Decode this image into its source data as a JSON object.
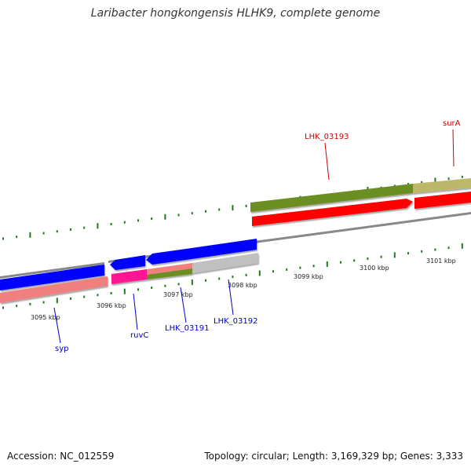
{
  "title": "Laribacter hongkongensis HLHK9, complete genome",
  "accession": "Accession: NC_012559",
  "topology": "Topology: circular; Length: 3,169,329 bp; Genes: 3,333",
  "colors": {
    "forward_gene": "#ff0000",
    "reverse_gene": "#0000ff",
    "forward_label": "#cc0000",
    "reverse_label": "#0000cc",
    "tick": "#227722",
    "backbone": "#888888"
  },
  "scale_labels": [
    "3095 kbp",
    "3096 kbp",
    "3097 kbp",
    "3098 kbp",
    "3099 kbp",
    "3100 kbp",
    "3101 kbp"
  ],
  "gene_labels": {
    "forward": [
      {
        "name": "LHK_03193"
      },
      {
        "name": "surA"
      }
    ],
    "reverse": [
      {
        "name": "syp"
      },
      {
        "name": "ruvC"
      },
      {
        "name": "LHK_03191"
      },
      {
        "name": "LHK_03192"
      }
    ]
  }
}
